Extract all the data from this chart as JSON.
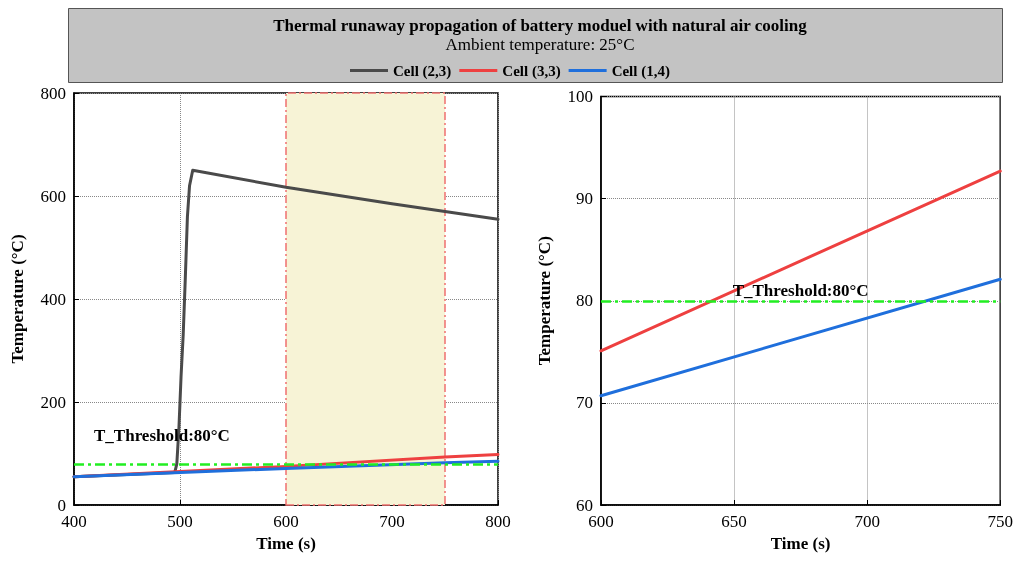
{
  "chart_data": [
    {
      "type": "line",
      "title": "Thermal runaway propagation of battery moduel with natural air cooling",
      "subtitle": "Ambient temperature: 25°C",
      "xlabel": "Time (s)",
      "ylabel": "Temperature (°C)",
      "legend": "top",
      "grid": true,
      "line_style": "solid",
      "xlim": [
        400,
        800
      ],
      "xticks": [
        400,
        500,
        600,
        700,
        800
      ],
      "ylim": [
        0,
        800
      ],
      "yticks": [
        0,
        200,
        400,
        600,
        800
      ],
      "series": [
        {
          "name": "Cell (2,3)",
          "color": "#4a4a4a",
          "x": [
            400,
            450,
            495,
            497,
            499,
            501,
            503,
            505,
            507,
            509,
            512,
            600,
            700,
            800
          ],
          "values": [
            55,
            59,
            63,
            80,
            150,
            250,
            330,
            440,
            560,
            620,
            650,
            617,
            585,
            555
          ]
        },
        {
          "name": "Cell (3,3)",
          "color": "#ee4040",
          "x": [
            400,
            600,
            750,
            800
          ],
          "values": [
            55,
            75,
            93,
            98
          ]
        },
        {
          "name": "Cell (1,4)",
          "color": "#1f6fdc",
          "x": [
            400,
            600,
            750,
            800
          ],
          "values": [
            55,
            71,
            82,
            85
          ]
        }
      ],
      "ref_lines": [
        {
          "axis": "y",
          "value": 80,
          "label": "T_Threshold:80°C",
          "color": "#22ee22",
          "line_style": "dashed"
        }
      ],
      "bands": [
        {
          "axis": "x",
          "from": 600,
          "to": 750,
          "color": "#f7f3d6"
        }
      ]
    },
    {
      "type": "line",
      "xlabel": "Time (s)",
      "ylabel": "Temperature (°C)",
      "grid": true,
      "line_style": "solid",
      "xlim": [
        600,
        750
      ],
      "xticks": [
        600,
        650,
        700,
        750
      ],
      "ylim": [
        60,
        100
      ],
      "yticks": [
        60,
        70,
        80,
        90,
        100
      ],
      "series": [
        {
          "color": "#ee4040",
          "x": [
            600,
            750
          ],
          "values": [
            75.1,
            92.7
          ]
        },
        {
          "color": "#1f6fdc",
          "x": [
            600,
            750
          ],
          "values": [
            70.7,
            82.1
          ]
        }
      ],
      "ref_lines": [
        {
          "axis": "y",
          "value": 80,
          "label": "T_Threshold:80°C",
          "color": "#22ee22",
          "line_style": "dashed"
        }
      ]
    }
  ]
}
